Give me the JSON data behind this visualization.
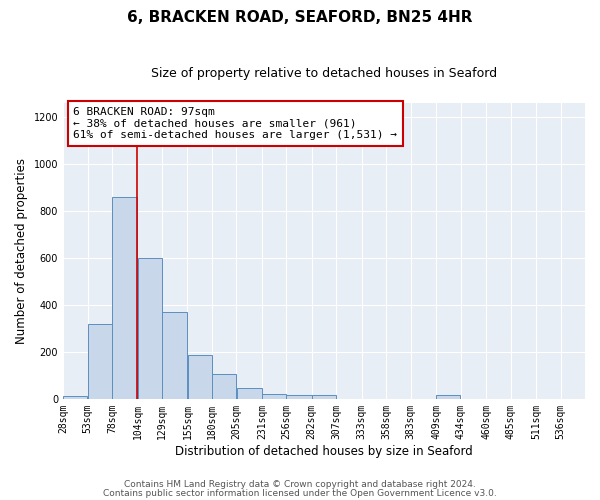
{
  "title": "6, BRACKEN ROAD, SEAFORD, BN25 4HR",
  "subtitle": "Size of property relative to detached houses in Seaford",
  "xlabel": "Distribution of detached houses by size in Seaford",
  "ylabel": "Number of detached properties",
  "bar_values": [
    10,
    320,
    860,
    600,
    370,
    185,
    105,
    45,
    20,
    18,
    15,
    0,
    0,
    0,
    0,
    15,
    0,
    0,
    0,
    0,
    0
  ],
  "bin_starts": [
    28,
    53,
    78,
    104,
    129,
    155,
    180,
    205,
    231,
    256,
    282,
    307,
    333,
    358,
    383,
    409,
    434,
    460,
    485,
    511,
    536
  ],
  "bar_color": "#c8d8ea",
  "bar_edge_color": "#5a8fc0",
  "bg_color": "#e8eef5",
  "annotation_box_text": "6 BRACKEN ROAD: 97sqm\n← 38% of detached houses are smaller (961)\n61% of semi-detached houses are larger (1,531) →",
  "annotation_box_edge_color": "#cc0000",
  "vline_x": 104,
  "vline_color": "#cc0000",
  "ylim": [
    0,
    1260
  ],
  "footnote1": "Contains HM Land Registry data © Crown copyright and database right 2024.",
  "footnote2": "Contains public sector information licensed under the Open Government Licence v3.0.",
  "title_fontsize": 11,
  "subtitle_fontsize": 9,
  "axis_label_fontsize": 8.5,
  "tick_fontsize": 7,
  "annotation_fontsize": 8
}
